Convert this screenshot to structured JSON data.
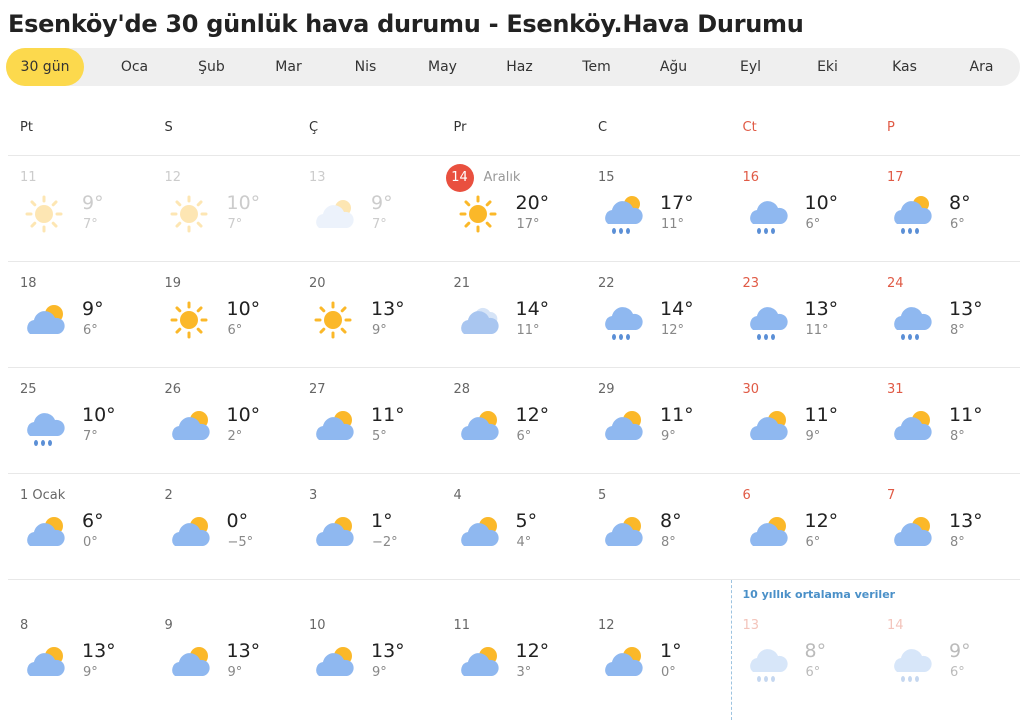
{
  "title": "Esenköy'de 30 günlük hava durumu - Esenköy.Hava Durumu",
  "tabs": [
    "30 gün",
    "Oca",
    "Şub",
    "Mar",
    "Nis",
    "May",
    "Haz",
    "Tem",
    "Ağu",
    "Eyl",
    "Eki",
    "Kas",
    "Ara"
  ],
  "active_tab": 0,
  "weekdays": [
    "Pt",
    "S",
    "Ç",
    "Pr",
    "C",
    "Ct",
    "P"
  ],
  "avg_note": "10 yıllık ortalama veriler",
  "colors": {
    "accent": "#fcd94d",
    "weekend": "#e05a45",
    "today": "#e9503f",
    "sun": "#fbb829",
    "cloud": "#8fb8f0"
  },
  "rows": [
    [
      {
        "d": "11",
        "icon": "sun",
        "hi": "9°",
        "lo": "7°",
        "state": "past"
      },
      {
        "d": "12",
        "icon": "sun",
        "hi": "10°",
        "lo": "7°",
        "state": "past"
      },
      {
        "d": "13",
        "icon": "cloudy-sun",
        "hi": "9°",
        "lo": "7°",
        "state": "past"
      },
      {
        "d": "Aralık",
        "today": "14",
        "icon": "sun",
        "hi": "20°",
        "lo": "17°",
        "state": "today"
      },
      {
        "d": "15",
        "icon": "cloud-sun-rain",
        "hi": "17°",
        "lo": "11°"
      },
      {
        "d": "16",
        "icon": "rain",
        "hi": "10°",
        "lo": "6°"
      },
      {
        "d": "17",
        "icon": "cloud-sun-rain",
        "hi": "8°",
        "lo": "6°"
      }
    ],
    [
      {
        "d": "18",
        "icon": "cloud-sun",
        "hi": "9°",
        "lo": "6°"
      },
      {
        "d": "19",
        "icon": "sun",
        "hi": "10°",
        "lo": "6°"
      },
      {
        "d": "20",
        "icon": "sun",
        "hi": "13°",
        "lo": "9°"
      },
      {
        "d": "21",
        "icon": "cloudy",
        "hi": "14°",
        "lo": "11°"
      },
      {
        "d": "22",
        "icon": "rain",
        "hi": "14°",
        "lo": "12°"
      },
      {
        "d": "23",
        "icon": "rain",
        "hi": "13°",
        "lo": "11°"
      },
      {
        "d": "24",
        "icon": "rain",
        "hi": "13°",
        "lo": "8°"
      }
    ],
    [
      {
        "d": "25",
        "icon": "rain",
        "hi": "10°",
        "lo": "7°"
      },
      {
        "d": "26",
        "icon": "cloud-sun",
        "hi": "10°",
        "lo": "2°"
      },
      {
        "d": "27",
        "icon": "cloud-sun",
        "hi": "11°",
        "lo": "5°"
      },
      {
        "d": "28",
        "icon": "cloud-sun",
        "hi": "12°",
        "lo": "6°"
      },
      {
        "d": "29",
        "icon": "cloud-sun",
        "hi": "11°",
        "lo": "9°"
      },
      {
        "d": "30",
        "icon": "cloud-sun",
        "hi": "11°",
        "lo": "9°"
      },
      {
        "d": "31",
        "icon": "cloud-sun",
        "hi": "11°",
        "lo": "8°"
      }
    ],
    [
      {
        "d": "1 Ocak",
        "icon": "cloud-sun",
        "hi": "6°",
        "lo": "0°"
      },
      {
        "d": "2",
        "icon": "cloud-sun",
        "hi": "0°",
        "lo": "−5°"
      },
      {
        "d": "3",
        "icon": "cloud-sun",
        "hi": "1°",
        "lo": "−2°"
      },
      {
        "d": "4",
        "icon": "cloud-sun",
        "hi": "5°",
        "lo": "4°"
      },
      {
        "d": "5",
        "icon": "cloud-sun",
        "hi": "8°",
        "lo": "8°"
      },
      {
        "d": "6",
        "icon": "cloud-sun",
        "hi": "12°",
        "lo": "6°"
      },
      {
        "d": "7",
        "icon": "cloud-sun",
        "hi": "13°",
        "lo": "8°"
      }
    ],
    [
      {
        "d": "8",
        "icon": "cloud-sun",
        "hi": "13°",
        "lo": "9°"
      },
      {
        "d": "9",
        "icon": "cloud-sun",
        "hi": "13°",
        "lo": "9°"
      },
      {
        "d": "10",
        "icon": "cloud-sun",
        "hi": "13°",
        "lo": "9°"
      },
      {
        "d": "11",
        "icon": "cloud-sun",
        "hi": "12°",
        "lo": "3°"
      },
      {
        "d": "12",
        "icon": "cloud-sun",
        "hi": "1°",
        "lo": "0°"
      },
      {
        "d": "13",
        "icon": "rain",
        "hi": "8°",
        "lo": "6°",
        "state": "avg"
      },
      {
        "d": "14",
        "icon": "rain",
        "hi": "9°",
        "lo": "6°",
        "state": "avg"
      }
    ]
  ]
}
